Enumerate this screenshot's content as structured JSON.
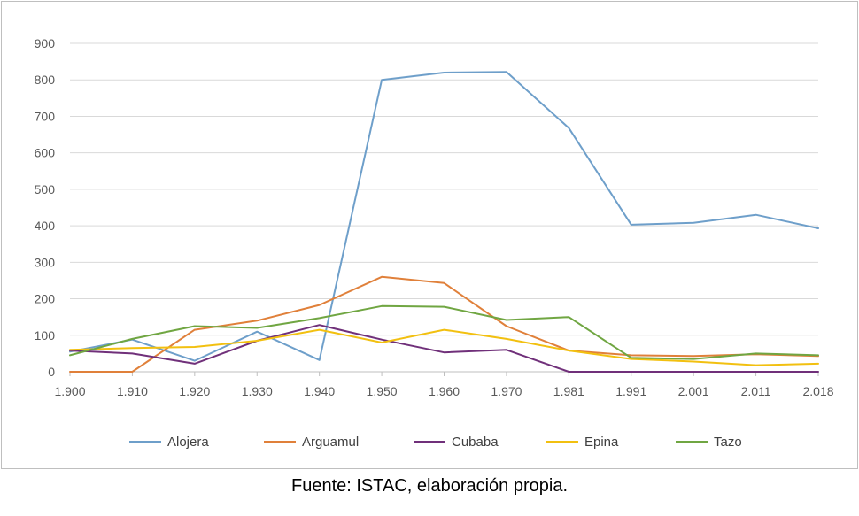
{
  "chart_data": {
    "type": "line",
    "title": "",
    "xlabel": "",
    "ylabel": "",
    "x": [
      "1.900",
      "1.910",
      "1.920",
      "1.930",
      "1.940",
      "1.950",
      "1.960",
      "1.970",
      "1.981",
      "1.991",
      "2.001",
      "2.011",
      "2.018"
    ],
    "x_values": [
      1900,
      1910,
      1920,
      1930,
      1940,
      1950,
      1960,
      1970,
      1981,
      1991,
      2001,
      2011,
      2018
    ],
    "ylim": [
      0,
      900
    ],
    "yticks": [
      "0",
      "100",
      "200",
      "300",
      "400",
      "500",
      "600",
      "700",
      "800",
      "900"
    ],
    "grid": "horizontal",
    "legend_position": "bottom",
    "series": [
      {
        "name": "Alojera",
        "color": "#6e9fca",
        "values": [
          55,
          88,
          30,
          110,
          32,
          800,
          820,
          822,
          668,
          403,
          408,
          430,
          393
        ]
      },
      {
        "name": "Arguamul",
        "color": "#e0803a",
        "values": [
          0,
          0,
          115,
          140,
          183,
          260,
          243,
          125,
          58,
          45,
          43,
          48,
          43
        ]
      },
      {
        "name": "Cubaba",
        "color": "#70307a",
        "values": [
          58,
          50,
          22,
          85,
          128,
          88,
          53,
          60,
          0,
          0,
          0,
          0,
          0
        ]
      },
      {
        "name": "Epina",
        "color": "#f2c010",
        "values": [
          60,
          65,
          68,
          85,
          115,
          80,
          115,
          90,
          58,
          35,
          28,
          18,
          22
        ]
      },
      {
        "name": "Tazo",
        "color": "#70a642",
        "values": [
          45,
          90,
          125,
          120,
          147,
          180,
          178,
          142,
          150,
          38,
          35,
          50,
          45
        ]
      }
    ]
  },
  "caption": "Fuente: ISTAC, elaboración propia."
}
